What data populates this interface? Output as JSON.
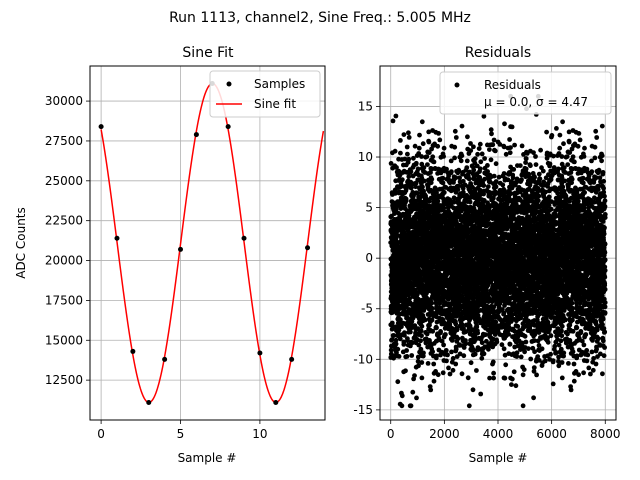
{
  "suptitle": "Run 1113, channel2, Sine Freq.: 5.005 MHz",
  "chart_data": [
    {
      "type": "line",
      "title": "Sine Fit",
      "xlabel": "Sample #",
      "ylabel": "ADC Counts",
      "xlim": [
        -0.7,
        14.1
      ],
      "ylim": [
        10000,
        32200
      ],
      "xticks": [
        0,
        5,
        10
      ],
      "yticks": [
        12500,
        15000,
        17500,
        20000,
        22500,
        25000,
        27500,
        30000
      ],
      "grid": true,
      "legend_position": "top-right",
      "series": [
        {
          "name": "Samples",
          "kind": "scatter",
          "color": "#000000",
          "x": [
            0,
            1,
            2,
            3,
            4,
            5,
            6,
            7,
            8,
            9,
            10,
            11,
            12,
            13
          ],
          "y": [
            28400,
            21400,
            14300,
            11100,
            13800,
            20700,
            27900,
            31100,
            28400,
            21400,
            14200,
            11100,
            13800,
            20800
          ]
        },
        {
          "name": "Sine fit",
          "kind": "line",
          "color": "#ff0000",
          "model": {
            "offset": 21100,
            "amplitude": 10000,
            "period": 8.0,
            "phase_rad": 2.349
          },
          "x_range": [
            0,
            14
          ]
        }
      ]
    },
    {
      "type": "scatter",
      "title": "Residuals",
      "xlabel": "Sample #",
      "ylabel": "",
      "xlim": [
        -400,
        8400
      ],
      "ylim": [
        -16,
        19
      ],
      "xticks": [
        0,
        2000,
        4000,
        6000,
        8000
      ],
      "yticks": [
        -15,
        -10,
        -5,
        0,
        5,
        10,
        15
      ],
      "grid": true,
      "legend_position": "top-right",
      "series": [
        {
          "name": "Residuals",
          "legend_line2": "μ = 0.0, σ = 4.47",
          "color": "#000000",
          "n_points": 8000,
          "x_range": [
            0,
            8000
          ],
          "mean": 0.0,
          "std": 4.47
        }
      ]
    }
  ]
}
